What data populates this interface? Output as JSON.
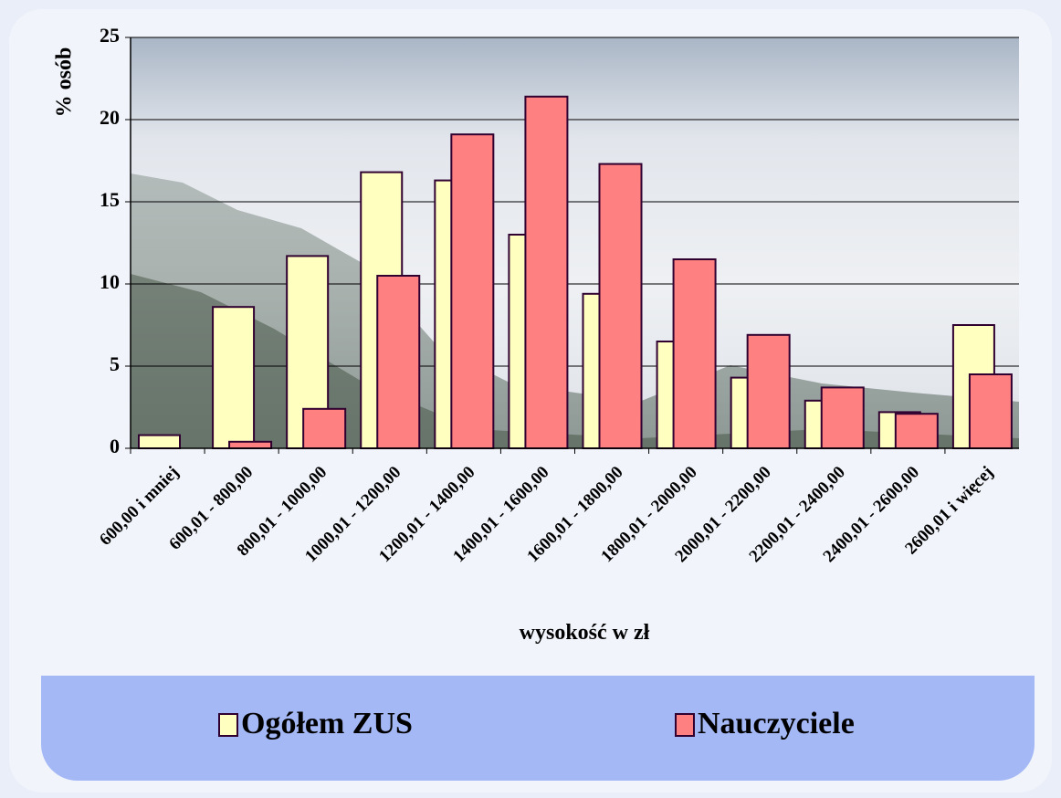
{
  "chart_data": {
    "type": "bar",
    "x_label": "wysokość w zł",
    "y_label": "% osób",
    "categories": [
      "600,00 i mniej",
      "600,01 - 800,00",
      "800,01 - 1000,00",
      "1000,01 - 1200,00",
      "1200,01 - 1400,00",
      "1400,01 - 1600,00",
      "1600,01 - 1800,00",
      "1800,01 - 2000,00",
      "2000,01 - 2200,00",
      "2200,01 - 2400,00",
      "2400,01 - 2600,00",
      "2600,01 i więcej"
    ],
    "series": [
      {
        "name": "Ogółem ZUS",
        "color": "#ffffc0",
        "values": [
          0.8,
          8.6,
          11.7,
          16.8,
          16.3,
          13.0,
          9.4,
          6.5,
          4.3,
          2.9,
          2.2,
          7.5
        ]
      },
      {
        "name": "Nauczyciele",
        "color": "#ff8080",
        "values": [
          0,
          0.4,
          2.4,
          10.5,
          19.1,
          21.4,
          17.3,
          11.5,
          6.9,
          3.7,
          2.1,
          4.5
        ]
      }
    ],
    "ylim": [
      0,
      25
    ],
    "yticks": [
      0,
      5,
      10,
      15,
      20,
      25
    ],
    "grid": true,
    "legend": "bottom"
  }
}
